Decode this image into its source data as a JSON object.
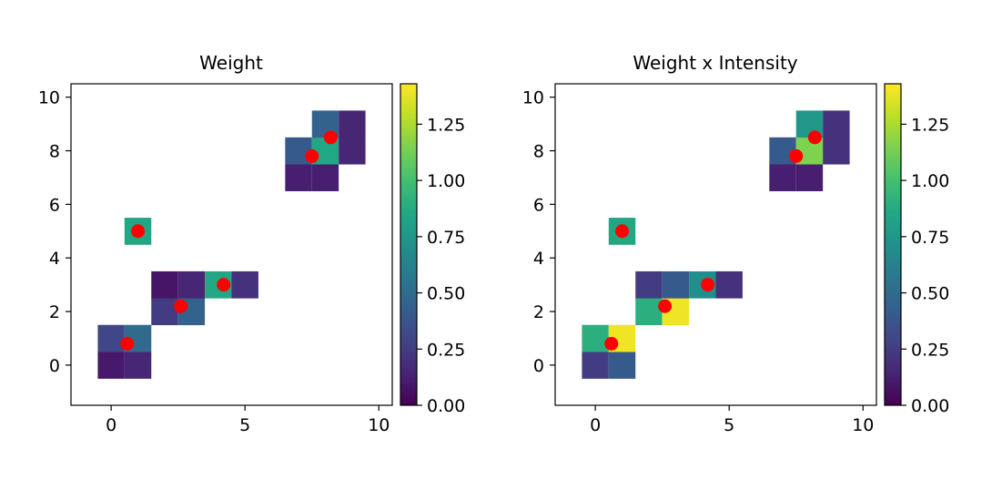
{
  "chart_data": [
    {
      "type": "heatmap",
      "title": "Weight",
      "x_ticks": [
        "0",
        "5",
        "10"
      ],
      "y_ticks": [
        "0",
        "2",
        "4",
        "6",
        "8",
        "10"
      ],
      "xlim": [
        -1.5,
        10.5
      ],
      "ylim": [
        10.5,
        -1.5
      ],
      "cells": [
        {
          "row": 0,
          "col": 0,
          "value": 0.1
        },
        {
          "row": 0,
          "col": 1,
          "value": 0.15
        },
        {
          "row": 1,
          "col": 0,
          "value": 0.3
        },
        {
          "row": 1,
          "col": 1,
          "value": 0.5
        },
        {
          "row": 2,
          "col": 2,
          "value": 0.25
        },
        {
          "row": 2,
          "col": 3,
          "value": 0.45
        },
        {
          "row": 3,
          "col": 2,
          "value": 0.08
        },
        {
          "row": 3,
          "col": 3,
          "value": 0.15
        },
        {
          "row": 3,
          "col": 4,
          "value": 0.85
        },
        {
          "row": 3,
          "col": 5,
          "value": 0.2
        },
        {
          "row": 5,
          "col": 1,
          "value": 0.85
        },
        {
          "row": 7,
          "col": 7,
          "value": 0.12
        },
        {
          "row": 7,
          "col": 8,
          "value": 0.12
        },
        {
          "row": 8,
          "col": 7,
          "value": 0.4
        },
        {
          "row": 8,
          "col": 8,
          "value": 0.85
        },
        {
          "row": 8,
          "col": 9,
          "value": 0.15
        },
        {
          "row": 9,
          "col": 8,
          "value": 0.45
        },
        {
          "row": 9,
          "col": 9,
          "value": 0.15
        }
      ],
      "grid_extent": {
        "x": [
          -0.5,
          9.5
        ],
        "y": [
          -0.5,
          9.5
        ]
      },
      "points": [
        {
          "x": 0.6,
          "y": 0.8
        },
        {
          "x": 2.6,
          "y": 2.2
        },
        {
          "x": 4.2,
          "y": 3.0
        },
        {
          "x": 1.0,
          "y": 5.0
        },
        {
          "x": 7.5,
          "y": 7.8
        },
        {
          "x": 8.2,
          "y": 8.5
        }
      ],
      "point_color": "#ff0000",
      "colorbar": {
        "min": 0,
        "max": 1.43,
        "ticks": [
          "0.00",
          "0.25",
          "0.50",
          "0.75",
          "1.00",
          "1.25"
        ],
        "colormap": "viridis"
      }
    },
    {
      "type": "heatmap",
      "title": "Weight x Intensity",
      "x_ticks": [
        "0",
        "5",
        "10"
      ],
      "y_ticks": [
        "0",
        "2",
        "4",
        "6",
        "8",
        "10"
      ],
      "xlim": [
        -1.5,
        10.5
      ],
      "ylim": [
        10.5,
        -1.5
      ],
      "cells": [
        {
          "row": 0,
          "col": 0,
          "value": 0.25
        },
        {
          "row": 0,
          "col": 1,
          "value": 0.4
        },
        {
          "row": 1,
          "col": 0,
          "value": 0.9
        },
        {
          "row": 1,
          "col": 1,
          "value": 1.4
        },
        {
          "row": 2,
          "col": 2,
          "value": 0.9
        },
        {
          "row": 2,
          "col": 3,
          "value": 1.4
        },
        {
          "row": 3,
          "col": 2,
          "value": 0.25
        },
        {
          "row": 3,
          "col": 3,
          "value": 0.4
        },
        {
          "row": 3,
          "col": 4,
          "value": 0.7
        },
        {
          "row": 3,
          "col": 5,
          "value": 0.2
        },
        {
          "row": 5,
          "col": 1,
          "value": 0.85
        },
        {
          "row": 7,
          "col": 7,
          "value": 0.12
        },
        {
          "row": 7,
          "col": 8,
          "value": 0.12
        },
        {
          "row": 8,
          "col": 7,
          "value": 0.4
        },
        {
          "row": 8,
          "col": 8,
          "value": 1.15
        },
        {
          "row": 8,
          "col": 9,
          "value": 0.2
        },
        {
          "row": 9,
          "col": 8,
          "value": 0.75
        },
        {
          "row": 9,
          "col": 9,
          "value": 0.2
        }
      ],
      "grid_extent": {
        "x": [
          -0.5,
          9.5
        ],
        "y": [
          -0.5,
          9.5
        ]
      },
      "points": [
        {
          "x": 0.6,
          "y": 0.8
        },
        {
          "x": 2.6,
          "y": 2.2
        },
        {
          "x": 4.2,
          "y": 3.0
        },
        {
          "x": 1.0,
          "y": 5.0
        },
        {
          "x": 7.5,
          "y": 7.8
        },
        {
          "x": 8.2,
          "y": 8.5
        }
      ],
      "point_color": "#ff0000",
      "colorbar": {
        "min": 0,
        "max": 1.43,
        "ticks": [
          "0.00",
          "0.25",
          "0.50",
          "0.75",
          "1.00",
          "1.25"
        ],
        "colormap": "viridis"
      }
    }
  ]
}
